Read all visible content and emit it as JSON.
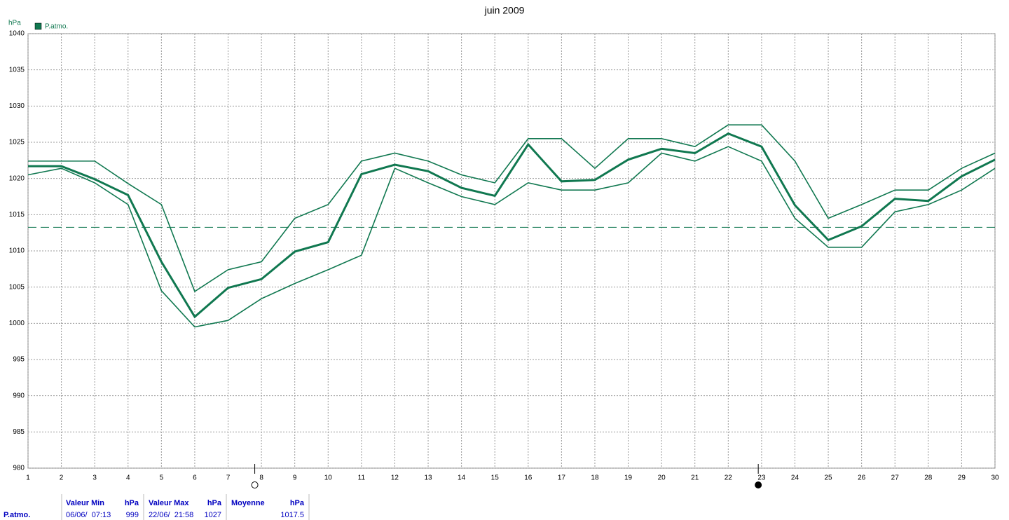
{
  "chart_data": {
    "type": "line",
    "title": "juin 2009",
    "y_label": "hPa",
    "x": [
      1,
      2,
      3,
      4,
      5,
      6,
      7,
      8,
      9,
      10,
      11,
      12,
      13,
      14,
      15,
      16,
      17,
      18,
      19,
      20,
      21,
      22,
      23,
      24,
      25,
      26,
      27,
      28,
      29,
      30
    ],
    "xlim": [
      1,
      30
    ],
    "xticks": [
      1,
      2,
      3,
      4,
      5,
      6,
      7,
      8,
      9,
      10,
      11,
      12,
      13,
      14,
      15,
      16,
      17,
      18,
      19,
      20,
      21,
      22,
      23,
      24,
      25,
      26,
      27,
      28,
      29,
      30
    ],
    "ylim": [
      980,
      1040
    ],
    "yticks": [
      980,
      985,
      990,
      995,
      1000,
      1005,
      1010,
      1015,
      1020,
      1025,
      1030,
      1035,
      1040
    ],
    "grid": true,
    "reference_line": 1013.25,
    "series": [
      {
        "color": "#107850",
        "values": [
          1022.4,
          1022.4,
          1022.4,
          1019.3,
          1016.4,
          1004.4,
          1007.4,
          1008.5,
          1014.5,
          1016.4,
          1022.4,
          1023.5,
          1022.4,
          1020.5,
          1019.4,
          1025.5,
          1025.5,
          1021.4,
          1025.5,
          1025.5,
          1024.4,
          1027.4,
          1027.4,
          1022.4,
          1014.5,
          1016.4,
          1018.4,
          1018.4,
          1021.4,
          1023.5
        ]
      },
      {
        "name": "P.atmo.",
        "color": "#107850",
        "values": [
          1021.7,
          1021.7,
          1019.9,
          1017.7,
          1008.5,
          1000.9,
          1004.9,
          1006.1,
          1009.9,
          1011.2,
          1020.6,
          1021.9,
          1021.0,
          1018.7,
          1017.6,
          1024.7,
          1019.6,
          1019.8,
          1022.6,
          1024.1,
          1023.5,
          1026.2,
          1024.4,
          1016.3,
          1011.5,
          1013.4,
          1017.2,
          1016.9,
          1020.3,
          1022.6
        ]
      },
      {
        "color": "#107850",
        "values": [
          1020.5,
          1021.4,
          1019.4,
          1016.4,
          1004.5,
          999.5,
          1000.4,
          1003.4,
          1005.5,
          1007.4,
          1009.4,
          1021.4,
          1019.4,
          1017.5,
          1016.4,
          1019.4,
          1018.4,
          1018.4,
          1019.4,
          1023.5,
          1022.4,
          1024.4,
          1022.4,
          1014.5,
          1010.5,
          1010.5,
          1015.4,
          1016.4,
          1018.4,
          1021.4
        ]
      }
    ],
    "markers": [
      {
        "x": 7.8,
        "style": "open"
      },
      {
        "x": 22.9,
        "style": "filled"
      }
    ]
  },
  "summary_table": {
    "header": [
      null,
      "Valeur Min",
      "hPa",
      "Valeur Max",
      "hPa",
      "Moyenne",
      "hPa"
    ],
    "rows": [
      [
        "P.atmo.",
        "06/06/  07:13",
        999,
        "22/06/  21:58",
        1027,
        null,
        1017.5
      ]
    ]
  }
}
